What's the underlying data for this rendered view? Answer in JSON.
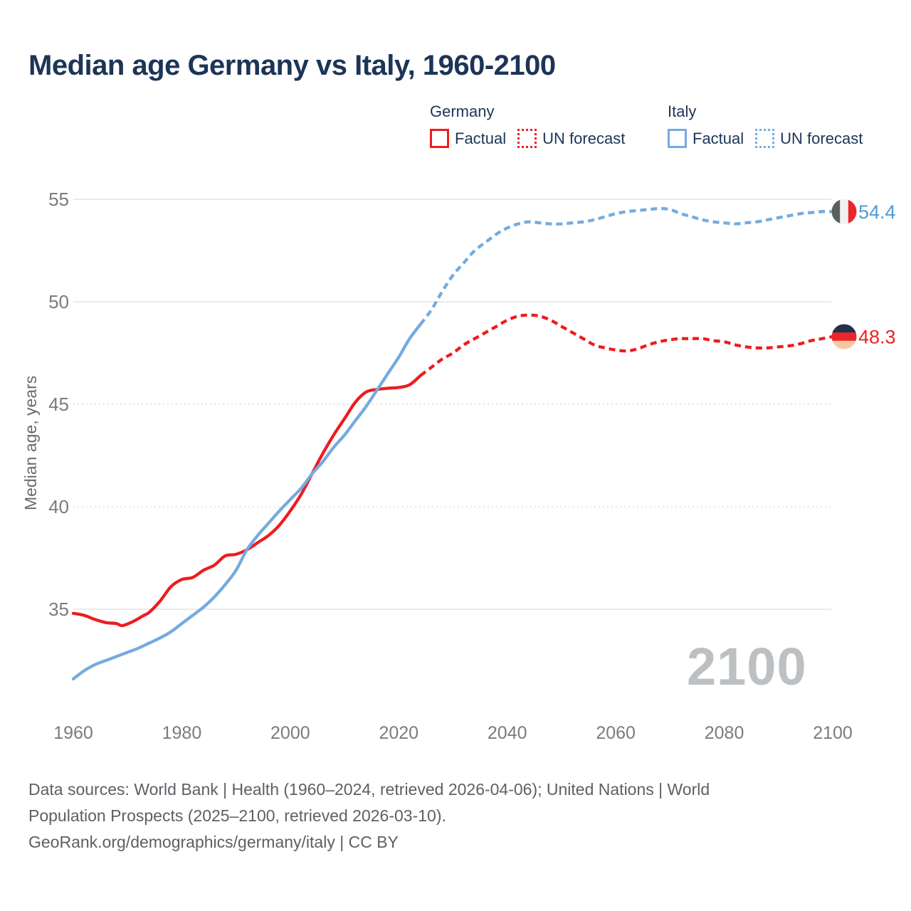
{
  "title": "Median age Germany vs Italy, 1960-2100",
  "watermark": "2100",
  "legend": {
    "groups": [
      {
        "country": "Germany",
        "color": "#ed1c1f",
        "items": [
          {
            "label": "Factual",
            "style": "solid"
          },
          {
            "label": "UN forecast",
            "style": "dotted"
          }
        ]
      },
      {
        "country": "Italy",
        "color": "#74abde",
        "items": [
          {
            "label": "Factual",
            "style": "solid"
          },
          {
            "label": "UN forecast",
            "style": "dotted"
          }
        ]
      }
    ]
  },
  "footer": {
    "lines": [
      "Data sources: World Bank | Health (1960–2024, retrieved 2026-04-06); United Nations | World",
      "Population Prospects (2025–2100, retrieved 2026-03-10).",
      "GeoRank.org/demographics/germany/italy | CC BY"
    ]
  },
  "axis": {
    "x_ticks": [
      1960,
      1980,
      2000,
      2020,
      2040,
      2060,
      2080,
      2100
    ],
    "y_ticks": [
      {
        "v": 55,
        "style": "solid"
      },
      {
        "v": 50,
        "style": "solid"
      },
      {
        "v": 45,
        "style": "dotted"
      },
      {
        "v": 40,
        "style": "dotted"
      },
      {
        "v": 35,
        "style": "solid"
      }
    ]
  },
  "chart_data": {
    "type": "line",
    "title": "Median age Germany vs Italy, 1960-2100",
    "xlabel": "",
    "ylabel": "Median age, years",
    "xlim": [
      1960,
      2100
    ],
    "ylim": [
      31,
      56
    ],
    "grid": "horizontal",
    "legend_position": "top-right",
    "series": [
      {
        "name": "Germany Factual",
        "color": "#ed1c1f",
        "dash": "solid",
        "points": [
          [
            1960,
            34.8
          ],
          [
            1962,
            34.7
          ],
          [
            1964,
            34.5
          ],
          [
            1966,
            34.35
          ],
          [
            1968,
            34.3
          ],
          [
            1969,
            34.2
          ],
          [
            1971,
            34.4
          ],
          [
            1973,
            34.7
          ],
          [
            1974,
            34.85
          ],
          [
            1976,
            35.4
          ],
          [
            1978,
            36.1
          ],
          [
            1980,
            36.45
          ],
          [
            1982,
            36.55
          ],
          [
            1984,
            36.9
          ],
          [
            1986,
            37.15
          ],
          [
            1988,
            37.6
          ],
          [
            1990,
            37.68
          ],
          [
            1992,
            37.9
          ],
          [
            1994,
            38.25
          ],
          [
            1996,
            38.6
          ],
          [
            1998,
            39.1
          ],
          [
            2000,
            39.8
          ],
          [
            2002,
            40.6
          ],
          [
            2004,
            41.6
          ],
          [
            2006,
            42.6
          ],
          [
            2008,
            43.5
          ],
          [
            2010,
            44.3
          ],
          [
            2012,
            45.1
          ],
          [
            2014,
            45.6
          ],
          [
            2016,
            45.72
          ],
          [
            2018,
            45.78
          ],
          [
            2020,
            45.82
          ],
          [
            2022,
            45.95
          ],
          [
            2024,
            46.4
          ]
        ]
      },
      {
        "name": "Germany UN forecast",
        "color": "#ed1c1f",
        "dash": "dashed",
        "points": [
          [
            2024,
            46.4
          ],
          [
            2026,
            46.8
          ],
          [
            2028,
            47.2
          ],
          [
            2030,
            47.5
          ],
          [
            2032,
            47.9
          ],
          [
            2034,
            48.2
          ],
          [
            2036,
            48.5
          ],
          [
            2038,
            48.8
          ],
          [
            2040,
            49.1
          ],
          [
            2042,
            49.3
          ],
          [
            2044,
            49.35
          ],
          [
            2046,
            49.3
          ],
          [
            2048,
            49.1
          ],
          [
            2050,
            48.8
          ],
          [
            2052,
            48.5
          ],
          [
            2054,
            48.2
          ],
          [
            2056,
            47.9
          ],
          [
            2058,
            47.75
          ],
          [
            2060,
            47.65
          ],
          [
            2062,
            47.6
          ],
          [
            2064,
            47.7
          ],
          [
            2066,
            47.9
          ],
          [
            2068,
            48.05
          ],
          [
            2070,
            48.15
          ],
          [
            2072,
            48.2
          ],
          [
            2074,
            48.2
          ],
          [
            2076,
            48.2
          ],
          [
            2078,
            48.1
          ],
          [
            2080,
            48.05
          ],
          [
            2082,
            47.9
          ],
          [
            2084,
            47.8
          ],
          [
            2086,
            47.75
          ],
          [
            2088,
            47.75
          ],
          [
            2090,
            47.8
          ],
          [
            2092,
            47.85
          ],
          [
            2094,
            47.95
          ],
          [
            2096,
            48.1
          ],
          [
            2098,
            48.2
          ],
          [
            2100,
            48.3
          ]
        ]
      },
      {
        "name": "Italy Factual",
        "color": "#74abde",
        "dash": "solid",
        "points": [
          [
            1960,
            31.6
          ],
          [
            1962,
            32.0
          ],
          [
            1964,
            32.3
          ],
          [
            1966,
            32.5
          ],
          [
            1968,
            32.7
          ],
          [
            1970,
            32.9
          ],
          [
            1972,
            33.1
          ],
          [
            1974,
            33.35
          ],
          [
            1976,
            33.6
          ],
          [
            1978,
            33.9
          ],
          [
            1980,
            34.3
          ],
          [
            1982,
            34.7
          ],
          [
            1984,
            35.1
          ],
          [
            1986,
            35.6
          ],
          [
            1988,
            36.2
          ],
          [
            1990,
            36.9
          ],
          [
            1992,
            37.9
          ],
          [
            1994,
            38.6
          ],
          [
            1996,
            39.2
          ],
          [
            1998,
            39.8
          ],
          [
            2000,
            40.35
          ],
          [
            2002,
            40.9
          ],
          [
            2004,
            41.6
          ],
          [
            2006,
            42.2
          ],
          [
            2008,
            42.9
          ],
          [
            2010,
            43.5
          ],
          [
            2012,
            44.2
          ],
          [
            2014,
            44.9
          ],
          [
            2016,
            45.7
          ],
          [
            2018,
            46.5
          ],
          [
            2020,
            47.3
          ],
          [
            2022,
            48.2
          ],
          [
            2024,
            48.9
          ]
        ]
      },
      {
        "name": "Italy UN forecast",
        "color": "#74abde",
        "dash": "dashed",
        "points": [
          [
            2024,
            48.9
          ],
          [
            2026,
            49.6
          ],
          [
            2028,
            50.5
          ],
          [
            2030,
            51.3
          ],
          [
            2032,
            51.9
          ],
          [
            2034,
            52.5
          ],
          [
            2036,
            52.9
          ],
          [
            2038,
            53.3
          ],
          [
            2040,
            53.6
          ],
          [
            2042,
            53.8
          ],
          [
            2044,
            53.9
          ],
          [
            2046,
            53.85
          ],
          [
            2048,
            53.8
          ],
          [
            2050,
            53.8
          ],
          [
            2052,
            53.85
          ],
          [
            2054,
            53.9
          ],
          [
            2056,
            54.0
          ],
          [
            2058,
            54.15
          ],
          [
            2060,
            54.3
          ],
          [
            2062,
            54.4
          ],
          [
            2064,
            54.45
          ],
          [
            2066,
            54.5
          ],
          [
            2068,
            54.55
          ],
          [
            2070,
            54.5
          ],
          [
            2072,
            54.3
          ],
          [
            2074,
            54.15
          ],
          [
            2076,
            54.0
          ],
          [
            2078,
            53.9
          ],
          [
            2080,
            53.85
          ],
          [
            2082,
            53.8
          ],
          [
            2084,
            53.85
          ],
          [
            2086,
            53.9
          ],
          [
            2088,
            54.0
          ],
          [
            2090,
            54.1
          ],
          [
            2092,
            54.2
          ],
          [
            2094,
            54.3
          ],
          [
            2096,
            54.35
          ],
          [
            2098,
            54.4
          ],
          [
            2100,
            54.4
          ]
        ]
      }
    ],
    "end_markers": [
      {
        "id": "italy",
        "value": 54.4,
        "label": "54.4",
        "label_color": "#4f9ad9",
        "flag": "italy-flag",
        "flag_orientation": "vertical",
        "flag_colors": [
          "#5a605d",
          "#f2f1ef",
          "#e8262b"
        ]
      },
      {
        "id": "germany",
        "value": 48.3,
        "label": "48.3",
        "label_color": "#ee2222",
        "flag": "germany-flag",
        "flag_orientation": "horizontal",
        "flag_colors": [
          "#22304d",
          "#e8262b",
          "#f8c7a0"
        ]
      }
    ]
  }
}
